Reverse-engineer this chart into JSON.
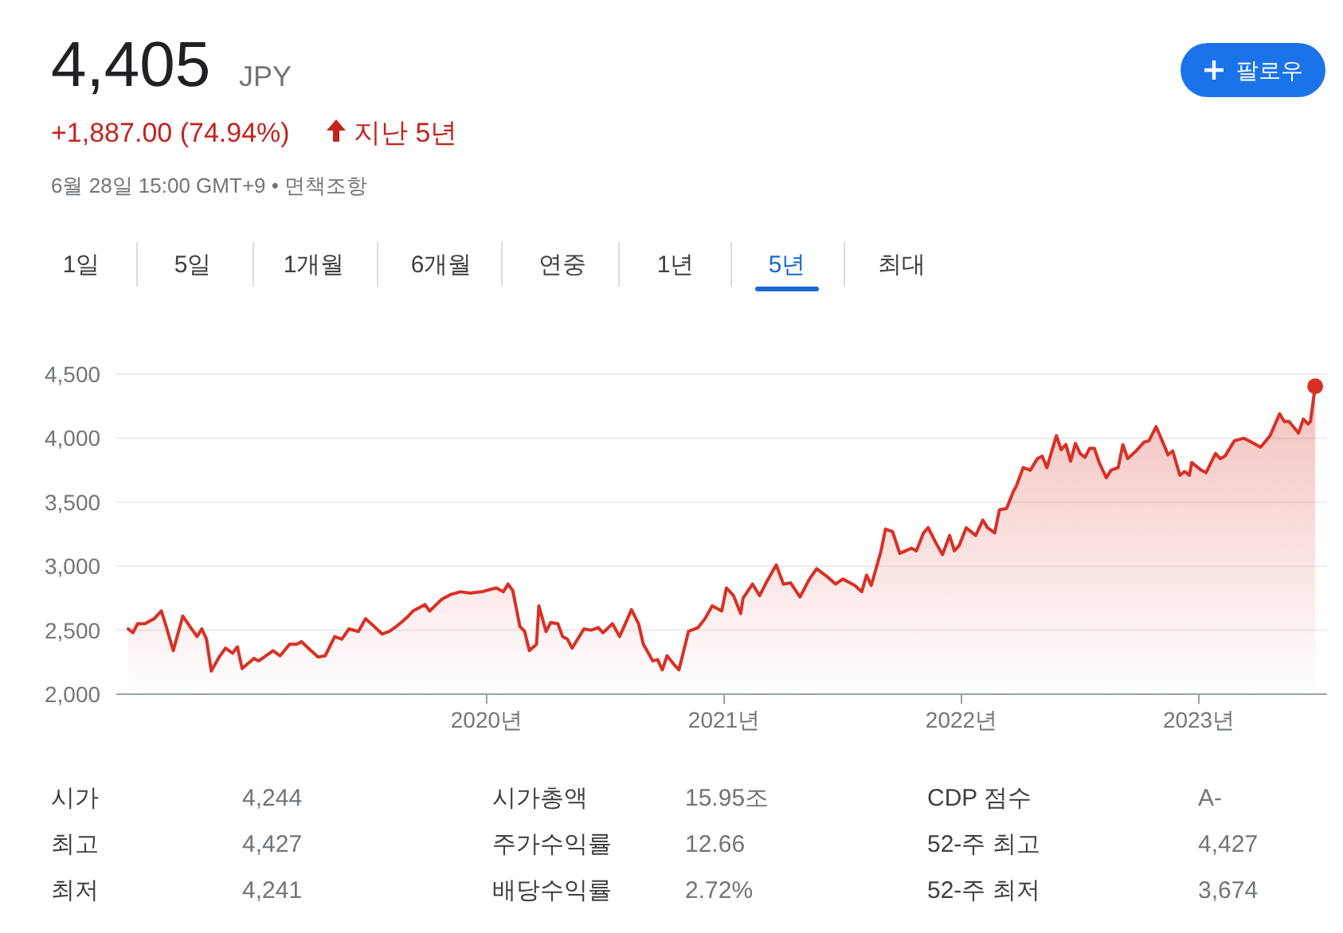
{
  "chart_data": {
    "type": "area",
    "title": "4,405",
    "subtitle": "JPY",
    "annotations": [
      "+1,887.00 (74.94%)",
      "지난 5년",
      "6월 28일 15:00 GMT+9 • 면책조항",
      "팔로우",
      "1일",
      "5일",
      "1개월",
      "6개월",
      "연중",
      "1년",
      "5년",
      "최대",
      "시가",
      "4,244",
      "시가총액",
      "15.95조",
      "CDP 점수",
      "A-",
      "최고",
      "4,427",
      "주가수익률",
      "12.66",
      "52-주 최고",
      "4,427",
      "최저",
      "4,241",
      "배당수익률",
      "2.72%",
      "52-주 최저",
      "3,674"
    ],
    "xlim": [
      2018.44,
      2023.54
    ],
    "xticks": [
      {
        "value": 2020,
        "label": "2020년"
      },
      {
        "value": 2021,
        "label": "2021년"
      },
      {
        "value": 2022,
        "label": "2022년"
      },
      {
        "value": 2023,
        "label": "2023년"
      }
    ],
    "ylim": [
      2000,
      4500
    ],
    "yticks": [
      {
        "value": 2000,
        "label": "2,000"
      },
      {
        "value": 2500,
        "label": "2,500"
      },
      {
        "value": 3000,
        "label": "3,000"
      },
      {
        "value": 3500,
        "label": "3,500"
      },
      {
        "value": 4000,
        "label": "4,000"
      },
      {
        "value": 4500,
        "label": "4,500"
      }
    ],
    "grid": "y",
    "series": [
      {
        "color": "#d93025",
        "x": [
          2018.49,
          2018.51,
          2018.53,
          2018.56,
          2018.6,
          2018.63,
          2018.65,
          2018.68,
          2018.72,
          2018.75,
          2018.78,
          2018.8,
          2018.82,
          2018.84,
          2018.87,
          2018.9,
          2018.93,
          2018.95,
          2018.97,
          2019.02,
          2019.04,
          2019.07,
          2019.1,
          2019.13,
          2019.17,
          2019.2,
          2019.22,
          2019.26,
          2019.29,
          2019.32,
          2019.36,
          2019.39,
          2019.42,
          2019.46,
          2019.49,
          2019.52,
          2019.56,
          2019.59,
          2019.62,
          2019.64,
          2019.67,
          2019.69,
          2019.74,
          2019.76,
          2019.81,
          2019.85,
          2019.89,
          2019.93,
          2019.98,
          2020.04,
          2020.07,
          2020.09,
          2020.11,
          2020.14,
          2020.16,
          2020.18,
          2020.21,
          2020.22,
          2020.25,
          2020.27,
          2020.3,
          2020.32,
          2020.34,
          2020.36,
          2020.38,
          2020.41,
          2020.44,
          2020.47,
          2020.49,
          2020.53,
          2020.56,
          2020.61,
          2020.64,
          2020.66,
          2020.7,
          2020.72,
          2020.74,
          2020.76,
          2020.79,
          2020.81,
          2020.85,
          2020.89,
          2020.92,
          2020.95,
          2020.99,
          2021.01,
          2021.04,
          2021.07,
          2021.08,
          2021.12,
          2021.15,
          2021.18,
          2021.22,
          2021.25,
          2021.28,
          2021.32,
          2021.36,
          2021.39,
          2021.44,
          2021.47,
          2021.5,
          2021.55,
          2021.58,
          2021.6,
          2021.62,
          2021.66,
          2021.68,
          2021.71,
          2021.74,
          2021.79,
          2021.81,
          2021.84,
          2021.86,
          2021.89,
          2021.92,
          2021.95,
          2021.97,
          2021.99,
          2022.02,
          2022.06,
          2022.09,
          2022.11,
          2022.14,
          2022.16,
          2022.19,
          2022.22,
          2022.23,
          2022.26,
          2022.29,
          2022.32,
          2022.34,
          2022.36,
          2022.4,
          2022.42,
          2022.44,
          2022.46,
          2022.48,
          2022.5,
          2022.52,
          2022.54,
          2022.56,
          2022.58,
          2022.61,
          2022.63,
          2022.66,
          2022.68,
          2022.7,
          2022.73,
          2022.77,
          2022.79,
          2022.82,
          2022.85,
          2022.87,
          2022.89,
          2022.92,
          2022.94,
          2022.96,
          2022.97,
          2023.01,
          2023.03,
          2023.07,
          2023.09,
          2023.11,
          2023.15,
          2023.19,
          2023.23,
          2023.26,
          2023.3,
          2023.34,
          2023.36,
          2023.38,
          2023.42,
          2023.44,
          2023.46,
          2023.47,
          2023.49
        ],
        "values": [
          2510,
          2480,
          2550,
          2550,
          2590,
          2650,
          2530,
          2340,
          2610,
          2530,
          2450,
          2510,
          2430,
          2180,
          2280,
          2360,
          2320,
          2370,
          2200,
          2280,
          2260,
          2300,
          2340,
          2300,
          2390,
          2390,
          2410,
          2340,
          2290,
          2300,
          2450,
          2430,
          2510,
          2490,
          2590,
          2540,
          2470,
          2490,
          2530,
          2560,
          2610,
          2650,
          2700,
          2650,
          2740,
          2780,
          2800,
          2790,
          2800,
          2830,
          2800,
          2860,
          2810,
          2530,
          2490,
          2340,
          2390,
          2690,
          2490,
          2560,
          2550,
          2450,
          2430,
          2360,
          2420,
          2510,
          2500,
          2520,
          2480,
          2550,
          2450,
          2660,
          2550,
          2390,
          2260,
          2270,
          2190,
          2300,
          2230,
          2190,
          2490,
          2520,
          2590,
          2690,
          2650,
          2830,
          2770,
          2630,
          2750,
          2860,
          2770,
          2880,
          3010,
          2860,
          2870,
          2760,
          2900,
          2980,
          2910,
          2860,
          2900,
          2850,
          2800,
          2930,
          2850,
          3110,
          3290,
          3270,
          3100,
          3140,
          3120,
          3260,
          3300,
          3190,
          3090,
          3240,
          3120,
          3160,
          3300,
          3240,
          3360,
          3300,
          3260,
          3440,
          3450,
          3590,
          3620,
          3770,
          3750,
          3840,
          3860,
          3770,
          4020,
          3910,
          3950,
          3820,
          3960,
          3880,
          3850,
          3920,
          3920,
          3810,
          3690,
          3750,
          3770,
          3950,
          3840,
          3890,
          3970,
          3980,
          4090,
          3960,
          3870,
          3900,
          3710,
          3740,
          3710,
          3810,
          3750,
          3730,
          3880,
          3840,
          3860,
          3980,
          4000,
          3960,
          3930,
          4020,
          4190,
          4130,
          4130,
          4040,
          4150,
          4110,
          4130,
          4405
        ]
      },
      {
        "type": "scatter",
        "color": "#d93025",
        "marker": "circle",
        "x": [
          2023.49
        ],
        "values": [
          4405
        ]
      }
    ]
  }
}
